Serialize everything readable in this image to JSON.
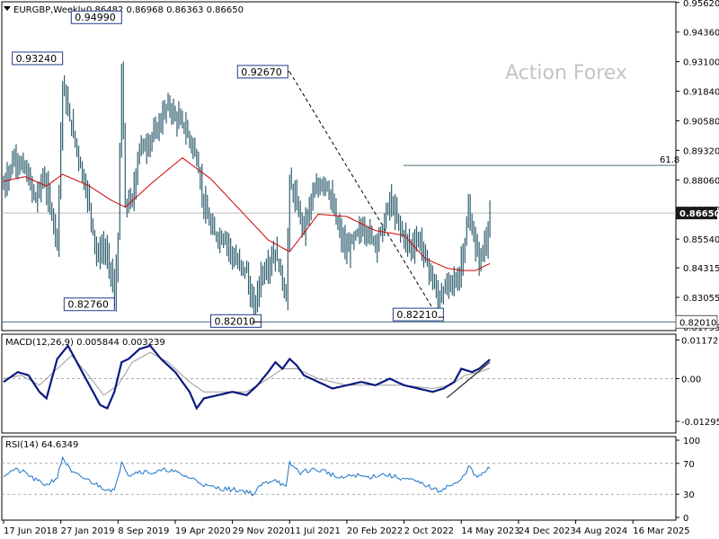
{
  "header": {
    "symbol": "EURGBP,Weekly",
    "ohlc": "0.86482 0.86968 0.86363 0.86650"
  },
  "watermark": "Action Forex",
  "colors": {
    "candles": "#2f5f6f",
    "ma": "#d00000",
    "macd_main": "#0a1a80",
    "macd_signal": "#9a9a9a",
    "rsi": "#1a73c8",
    "label_border": "#1f3a8a",
    "current_label_bg": "#1a1a1a"
  },
  "chart_data": [
    {
      "type": "line",
      "panel": "price",
      "y_axis_ticks": [
        "0.95620",
        "0.94360",
        "0.93100",
        "0.91840",
        "0.90580",
        "0.89320",
        "0.88060",
        "0.86800",
        "0.85540",
        "0.84315",
        "0.83055",
        "0.81795"
      ],
      "ylim": [
        0.8164,
        0.9565
      ],
      "current_price": "0.86650",
      "current_price_value": 0.8665,
      "fib_level": {
        "label": "61.8",
        "value": 0.8868
      },
      "low_line": {
        "label": "0.82010",
        "value": 0.8201
      },
      "annotations": [
        {
          "text": "0.93240",
          "value": 0.9324,
          "week": 33
        },
        {
          "text": "0.94990",
          "value": 0.9499,
          "week": 66
        },
        {
          "text": "0.82760",
          "value": 0.8276,
          "week": 62
        },
        {
          "text": "0.82010",
          "value": 0.8201,
          "week": 139
        },
        {
          "text": "0.92670",
          "value": 0.9267,
          "week": 160
        },
        {
          "text": "0.82210",
          "value": 0.8221,
          "week": 243
        }
      ],
      "trendline": {
        "from": {
          "week": 160,
          "value": 0.9267
        },
        "to": {
          "week": 243,
          "value": 0.8221
        }
      },
      "x_tick_labels": [
        {
          "label": "17 Jun 2018",
          "week": 0
        },
        {
          "label": "27 Jan 2019",
          "week": 32
        },
        {
          "label": "8 Sep 2019",
          "week": 64
        },
        {
          "label": "19 Apr 2020",
          "week": 96
        },
        {
          "label": "29 Nov 2020",
          "week": 128
        },
        {
          "label": "11 Jul 2021",
          "week": 160
        },
        {
          "label": "20 Feb 2022",
          "week": 192
        },
        {
          "label": "2 Oct 2022",
          "week": 224
        },
        {
          "label": "14 May 2023",
          "week": 256
        },
        {
          "label": "24 Dec 2023",
          "week": 288
        },
        {
          "label": "4 Aug 2024",
          "week": 320
        },
        {
          "label": "16 Mar 2025",
          "week": 352
        }
      ],
      "weeks_total": 372,
      "price_anchors": [
        [
          0,
          0.878
        ],
        [
          6,
          0.89
        ],
        [
          12,
          0.885
        ],
        [
          18,
          0.872
        ],
        [
          22,
          0.882
        ],
        [
          26,
          0.87
        ],
        [
          30,
          0.855
        ],
        [
          33,
          0.921
        ],
        [
          36,
          0.91
        ],
        [
          40,
          0.897
        ],
        [
          44,
          0.883
        ],
        [
          48,
          0.87
        ],
        [
          52,
          0.848
        ],
        [
          56,
          0.852
        ],
        [
          60,
          0.842
        ],
        [
          62,
          0.83
        ],
        [
          64,
          0.855
        ],
        [
          66,
          0.928
        ],
        [
          68,
          0.87
        ],
        [
          72,
          0.872
        ],
        [
          76,
          0.895
        ],
        [
          80,
          0.895
        ],
        [
          84,
          0.9
        ],
        [
          88,
          0.906
        ],
        [
          92,
          0.913
        ],
        [
          96,
          0.907
        ],
        [
          100,
          0.905
        ],
        [
          104,
          0.898
        ],
        [
          108,
          0.89
        ],
        [
          112,
          0.87
        ],
        [
          116,
          0.86
        ],
        [
          120,
          0.856
        ],
        [
          124,
          0.856
        ],
        [
          128,
          0.848
        ],
        [
          132,
          0.844
        ],
        [
          136,
          0.842
        ],
        [
          138,
          0.83
        ],
        [
          140,
          0.825
        ],
        [
          144,
          0.84
        ],
        [
          148,
          0.844
        ],
        [
          152,
          0.85
        ],
        [
          156,
          0.838
        ],
        [
          158,
          0.83
        ],
        [
          160,
          0.88
        ],
        [
          164,
          0.87
        ],
        [
          168,
          0.86
        ],
        [
          172,
          0.872
        ],
        [
          176,
          0.878
        ],
        [
          180,
          0.88
        ],
        [
          184,
          0.87
        ],
        [
          188,
          0.858
        ],
        [
          192,
          0.85
        ],
        [
          196,
          0.856
        ],
        [
          200,
          0.86
        ],
        [
          204,
          0.858
        ],
        [
          208,
          0.854
        ],
        [
          212,
          0.86
        ],
        [
          216,
          0.872
        ],
        [
          220,
          0.864
        ],
        [
          224,
          0.856
        ],
        [
          228,
          0.852
        ],
        [
          232,
          0.856
        ],
        [
          236,
          0.847
        ],
        [
          240,
          0.838
        ],
        [
          243,
          0.83
        ],
        [
          246,
          0.833
        ],
        [
          250,
          0.838
        ],
        [
          254,
          0.837
        ],
        [
          256,
          0.846
        ],
        [
          258,
          0.854
        ],
        [
          260,
          0.868
        ],
        [
          262,
          0.859
        ],
        [
          266,
          0.846
        ],
        [
          270,
          0.855
        ],
        [
          272,
          0.866
        ]
      ],
      "ma_anchors": [
        [
          0,
          0.88
        ],
        [
          12,
          0.882
        ],
        [
          24,
          0.878
        ],
        [
          33,
          0.883
        ],
        [
          48,
          0.878
        ],
        [
          60,
          0.872
        ],
        [
          68,
          0.869
        ],
        [
          84,
          0.88
        ],
        [
          100,
          0.89
        ],
        [
          116,
          0.881
        ],
        [
          132,
          0.868
        ],
        [
          148,
          0.855
        ],
        [
          160,
          0.85
        ],
        [
          176,
          0.866
        ],
        [
          192,
          0.865
        ],
        [
          208,
          0.859
        ],
        [
          224,
          0.857
        ],
        [
          236,
          0.847
        ],
        [
          248,
          0.843
        ],
        [
          256,
          0.842
        ],
        [
          264,
          0.842
        ],
        [
          272,
          0.845
        ]
      ]
    },
    {
      "type": "line",
      "panel": "macd",
      "title": "MACD(12,26,9) 0.005844 0.003239",
      "y_axis_ticks": [
        "0.011727",
        "0.00",
        "-0.012951"
      ],
      "ylim": [
        -0.0165,
        0.0135
      ],
      "main_anchors": [
        [
          0,
          -0.001
        ],
        [
          8,
          0.002
        ],
        [
          14,
          0.001
        ],
        [
          20,
          -0.004
        ],
        [
          24,
          -0.006
        ],
        [
          30,
          0.006
        ],
        [
          36,
          0.01
        ],
        [
          42,
          0.004
        ],
        [
          48,
          -0.002
        ],
        [
          54,
          -0.008
        ],
        [
          58,
          -0.009
        ],
        [
          62,
          -0.004
        ],
        [
          66,
          0.005
        ],
        [
          70,
          0.006
        ],
        [
          76,
          0.009
        ],
        [
          82,
          0.01
        ],
        [
          88,
          0.006
        ],
        [
          96,
          0.002
        ],
        [
          104,
          -0.004
        ],
        [
          108,
          -0.009
        ],
        [
          112,
          -0.006
        ],
        [
          120,
          -0.005
        ],
        [
          128,
          -0.004
        ],
        [
          136,
          -0.005
        ],
        [
          142,
          -0.002
        ],
        [
          148,
          0.002
        ],
        [
          152,
          0.005
        ],
        [
          156,
          0.003
        ],
        [
          160,
          0.006
        ],
        [
          164,
          0.004
        ],
        [
          168,
          0.001
        ],
        [
          176,
          -0.001
        ],
        [
          184,
          -0.003
        ],
        [
          192,
          -0.002
        ],
        [
          200,
          -0.001
        ],
        [
          208,
          -0.002
        ],
        [
          216,
          0.0
        ],
        [
          224,
          -0.002
        ],
        [
          232,
          -0.003
        ],
        [
          240,
          -0.004
        ],
        [
          246,
          -0.003
        ],
        [
          252,
          -0.001
        ],
        [
          256,
          0.003
        ],
        [
          262,
          0.002
        ],
        [
          266,
          0.003
        ],
        [
          272,
          0.0058
        ]
      ],
      "signal_anchors": [
        [
          0,
          0.0
        ],
        [
          10,
          0.001
        ],
        [
          20,
          -0.002
        ],
        [
          30,
          0.003
        ],
        [
          38,
          0.007
        ],
        [
          46,
          0.002
        ],
        [
          56,
          -0.005
        ],
        [
          64,
          -0.002
        ],
        [
          72,
          0.005
        ],
        [
          82,
          0.008
        ],
        [
          92,
          0.005
        ],
        [
          104,
          -0.001
        ],
        [
          112,
          -0.004
        ],
        [
          124,
          -0.004
        ],
        [
          136,
          -0.004
        ],
        [
          148,
          0.0
        ],
        [
          156,
          0.003
        ],
        [
          164,
          0.003
        ],
        [
          176,
          0.0
        ],
        [
          192,
          -0.002
        ],
        [
          208,
          -0.002
        ],
        [
          224,
          -0.002
        ],
        [
          240,
          -0.003
        ],
        [
          250,
          -0.002
        ],
        [
          258,
          0.001
        ],
        [
          266,
          0.002
        ],
        [
          272,
          0.0032
        ]
      ],
      "trendline": {
        "from": {
          "week": 248,
          "value": -0.0058
        },
        "to": {
          "week": 272,
          "value": 0.005
        }
      }
    },
    {
      "type": "line",
      "panel": "rsi",
      "title": "RSI(14) 64.6349",
      "y_axis_ticks": [
        "100",
        "70",
        "30",
        "0"
      ],
      "ylim": [
        0,
        100
      ],
      "levels": [
        70,
        30
      ],
      "anchors": [
        [
          0,
          55
        ],
        [
          6,
          62
        ],
        [
          12,
          58
        ],
        [
          18,
          48
        ],
        [
          24,
          42
        ],
        [
          30,
          52
        ],
        [
          33,
          78
        ],
        [
          38,
          58
        ],
        [
          44,
          52
        ],
        [
          50,
          45
        ],
        [
          56,
          38
        ],
        [
          62,
          35
        ],
        [
          64,
          50
        ],
        [
          66,
          74
        ],
        [
          70,
          55
        ],
        [
          76,
          60
        ],
        [
          84,
          58
        ],
        [
          92,
          62
        ],
        [
          100,
          55
        ],
        [
          108,
          48
        ],
        [
          114,
          40
        ],
        [
          120,
          38
        ],
        [
          128,
          36
        ],
        [
          136,
          34
        ],
        [
          140,
          30
        ],
        [
          144,
          42
        ],
        [
          152,
          50
        ],
        [
          158,
          38
        ],
        [
          160,
          70
        ],
        [
          166,
          58
        ],
        [
          172,
          62
        ],
        [
          180,
          60
        ],
        [
          188,
          50
        ],
        [
          196,
          55
        ],
        [
          204,
          52
        ],
        [
          212,
          56
        ],
        [
          220,
          52
        ],
        [
          228,
          48
        ],
        [
          236,
          42
        ],
        [
          243,
          34
        ],
        [
          248,
          40
        ],
        [
          254,
          44
        ],
        [
          258,
          55
        ],
        [
          260,
          68
        ],
        [
          264,
          52
        ],
        [
          268,
          56
        ],
        [
          272,
          64.6
        ]
      ]
    }
  ]
}
